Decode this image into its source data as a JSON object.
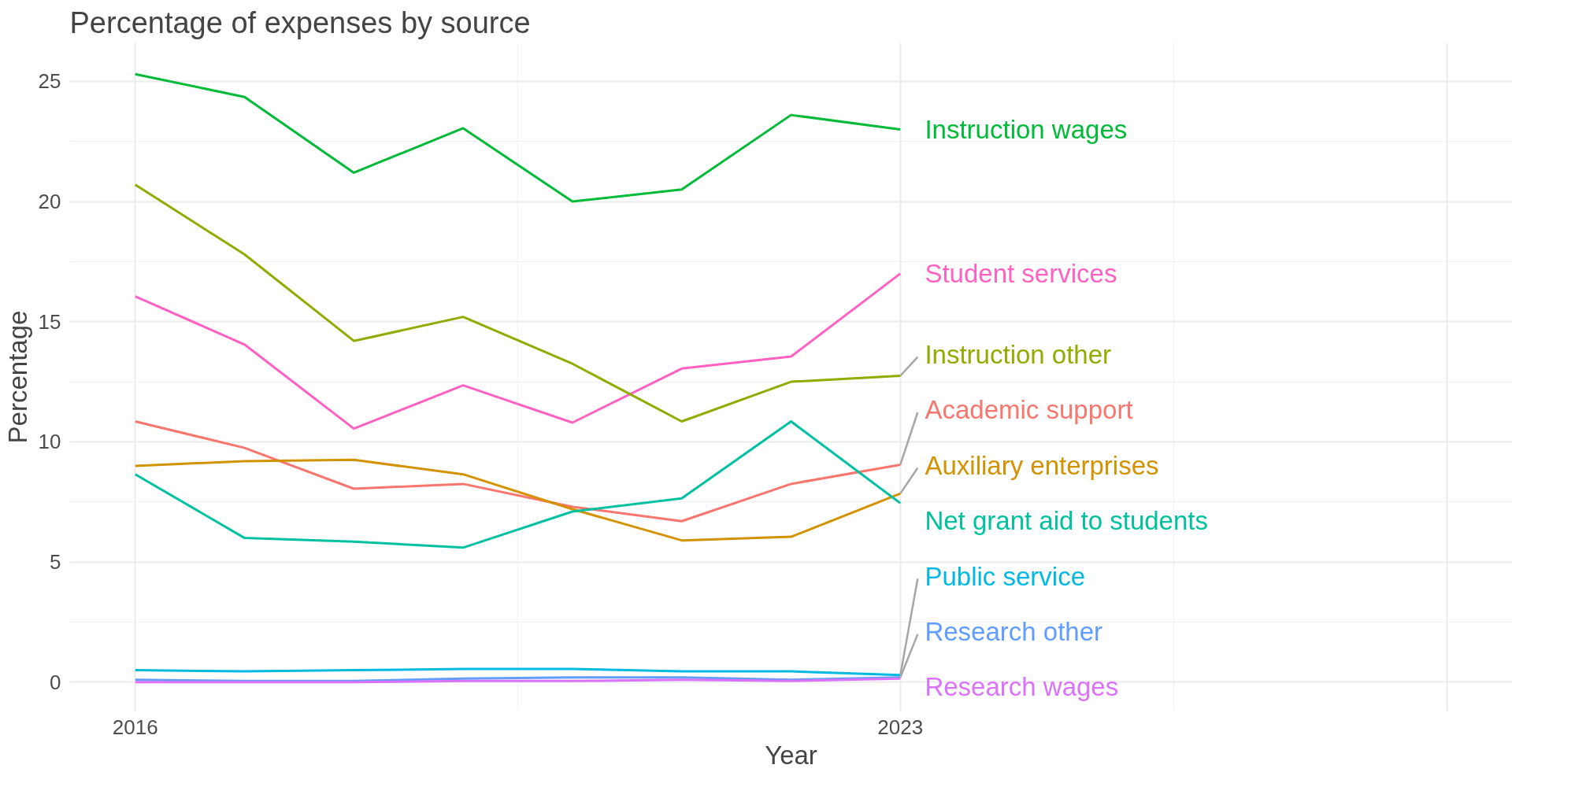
{
  "chart_data": {
    "type": "line",
    "title": "Percentage of expenses by source",
    "xlabel": "Year",
    "ylabel": "Percentage",
    "x": [
      2016,
      2017,
      2018,
      2019,
      2020,
      2021,
      2022,
      2023
    ],
    "xlim": [
      2015.4,
      2028.6
    ],
    "xticks": [
      2016,
      2023,
      {
        "value": 2028,
        "label": null
      }
    ],
    "ylim": [
      -1.2,
      26.6
    ],
    "yticks": [
      0,
      5,
      10,
      15,
      20,
      25
    ],
    "grid": true,
    "legend": false,
    "series": [
      {
        "name": "Instruction wages",
        "color": "#00ba38",
        "values": [
          25.3,
          24.35,
          21.2,
          23.05,
          20.0,
          20.5,
          23.6,
          23.0
        ]
      },
      {
        "name": "Student services",
        "color": "#ff61c3",
        "values": [
          16.05,
          14.05,
          10.55,
          12.35,
          10.8,
          13.05,
          13.55,
          17.0
        ]
      },
      {
        "name": "Instruction other",
        "color": "#93aa00",
        "values": [
          20.7,
          17.8,
          14.2,
          15.2,
          13.25,
          10.85,
          12.5,
          12.75
        ]
      },
      {
        "name": "Academic support",
        "color": "#f8766d",
        "values": [
          10.85,
          9.75,
          8.05,
          8.25,
          7.3,
          6.7,
          8.25,
          9.05
        ]
      },
      {
        "name": "Auxiliary enterprises",
        "color": "#d39200",
        "values": [
          9.0,
          9.2,
          9.25,
          8.65,
          7.2,
          5.9,
          6.05,
          7.85
        ]
      },
      {
        "name": "Net grant aid to students",
        "color": "#00c19f",
        "values": [
          8.65,
          6.0,
          5.85,
          5.6,
          7.1,
          7.65,
          10.85,
          7.45
        ]
      },
      {
        "name": "Public service",
        "color": "#00b9e3",
        "values": [
          0.5,
          0.45,
          0.5,
          0.55,
          0.55,
          0.45,
          0.45,
          0.3
        ]
      },
      {
        "name": "Research other",
        "color": "#619cff",
        "values": [
          0.1,
          0.05,
          0.05,
          0.15,
          0.2,
          0.2,
          0.1,
          0.2
        ]
      },
      {
        "name": "Research wages",
        "color": "#db72fb",
        "values": [
          0.0,
          0.0,
          0.0,
          0.05,
          0.05,
          0.1,
          0.05,
          0.15
        ]
      }
    ]
  }
}
